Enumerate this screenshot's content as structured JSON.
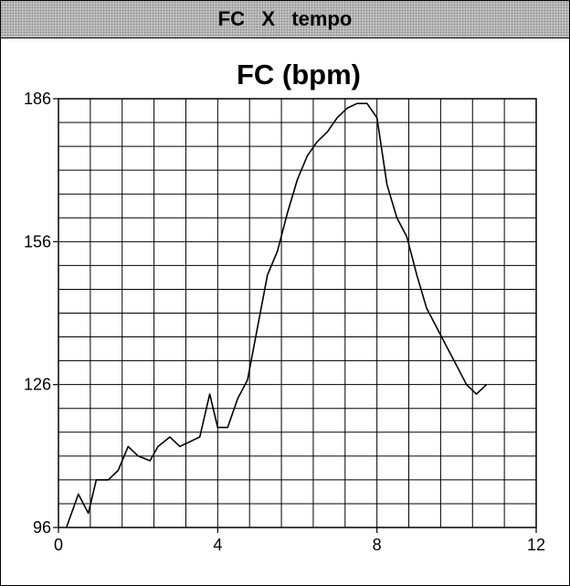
{
  "window": {
    "title": "FC   X   tempo"
  },
  "chart_data": {
    "type": "line",
    "title": "FC (bpm)",
    "xlabel": "",
    "ylabel": "",
    "xlim": [
      0,
      12
    ],
    "ylim": [
      96,
      186
    ],
    "xticks": [
      0,
      4,
      8,
      12
    ],
    "yticks": [
      96,
      126,
      156,
      186
    ],
    "grid": true,
    "line_color": "#000000",
    "series": [
      {
        "x": [
          0.2,
          0.5,
          0.75,
          0.95,
          1.25,
          1.5,
          1.75,
          2.0,
          2.3,
          2.5,
          2.8,
          3.05,
          3.3,
          3.55,
          3.8,
          4.0,
          4.25,
          4.5,
          4.75,
          5.0,
          5.25,
          5.5,
          5.75,
          6.0,
          6.25,
          6.5,
          6.75,
          7.0,
          7.25,
          7.5,
          7.75,
          8.0,
          8.25,
          8.5,
          8.75,
          9.0,
          9.25,
          9.5,
          9.75,
          10.0,
          10.25,
          10.5,
          10.75
        ],
        "y": [
          96,
          103,
          99,
          106,
          106,
          108,
          113,
          111,
          110,
          113,
          115,
          113,
          114,
          115,
          124,
          117,
          117,
          123,
          127,
          138,
          149,
          154,
          162,
          169,
          174,
          177,
          179,
          182,
          184,
          185,
          185,
          182,
          168,
          161,
          157,
          149,
          142,
          138,
          134,
          130,
          126,
          124,
          126
        ]
      }
    ]
  }
}
